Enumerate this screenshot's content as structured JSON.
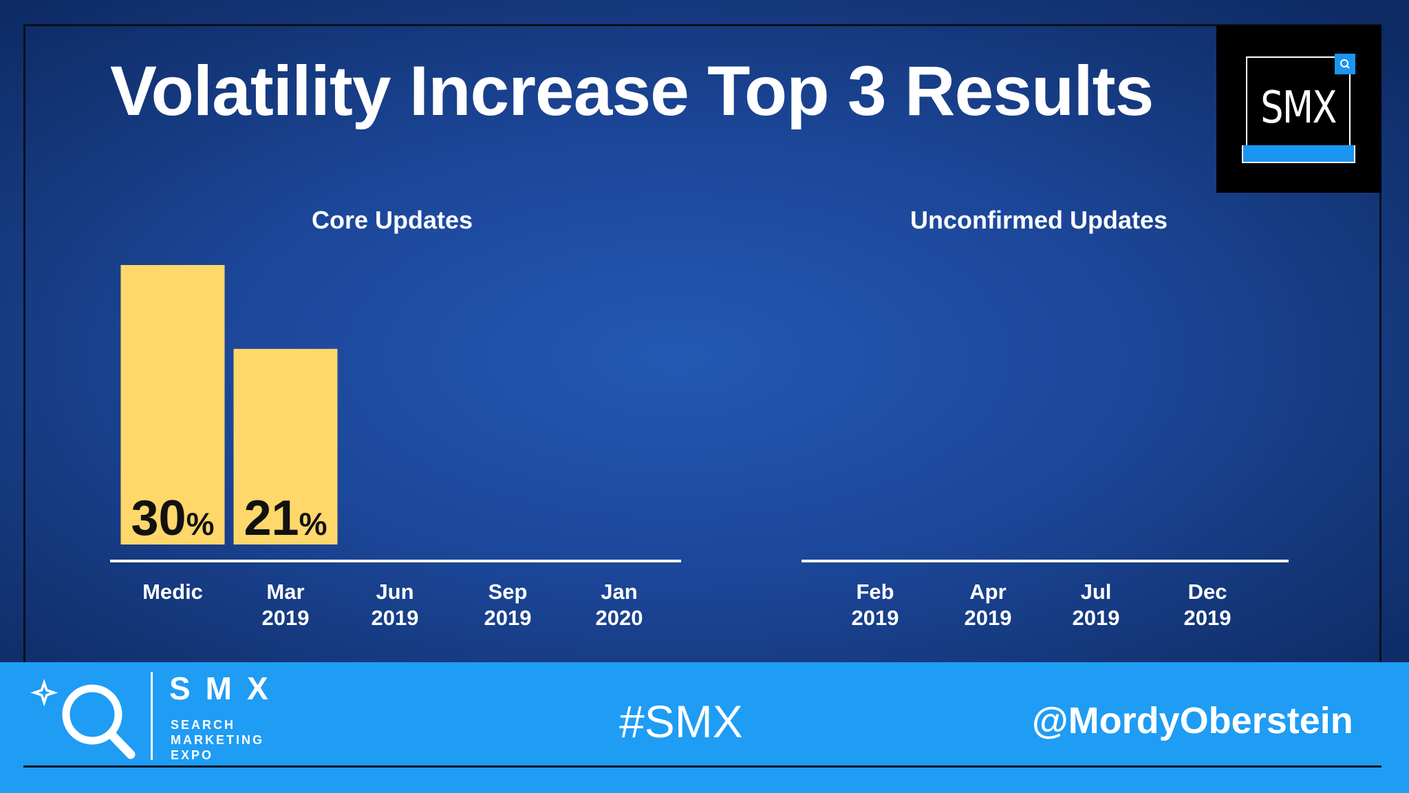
{
  "slide": {
    "title": "Volatility Increase Top 3 Results",
    "logo_text": "SMX",
    "footer": {
      "brand": "SMX",
      "brand_lines": [
        "SEARCH",
        "MARKETING",
        "EXPO"
      ],
      "hashtag": "#SMX",
      "handle": "@MordyOberstein"
    }
  },
  "colors": {
    "bar": "#ffd76a",
    "label_text": "#111111",
    "axis": "#ffffff",
    "footer": "#1f9cf4"
  },
  "chart_data": [
    {
      "type": "bar",
      "title": "Core Updates",
      "categories": [
        [
          "Medic",
          ""
        ],
        [
          "Mar",
          "2019"
        ],
        [
          "Jun",
          "2019"
        ],
        [
          "Sep",
          "2019"
        ],
        [
          "Jan",
          "2020"
        ]
      ],
      "values": [
        30,
        21,
        null,
        null,
        null
      ],
      "data_labels": [
        "30",
        "21",
        "",
        "",
        ""
      ],
      "unit": "%",
      "ylim": [
        0,
        30
      ],
      "grid": false
    },
    {
      "type": "bar",
      "title": "Unconfirmed Updates",
      "categories": [
        [
          "Feb",
          "2019"
        ],
        [
          "Apr",
          "2019"
        ],
        [
          "Jul",
          "2019"
        ],
        [
          "Dec",
          "2019"
        ]
      ],
      "values": [
        null,
        null,
        null,
        null
      ],
      "data_labels": [
        "",
        "",
        "",
        ""
      ],
      "unit": "%",
      "ylim": [
        0,
        30
      ],
      "grid": false
    }
  ]
}
